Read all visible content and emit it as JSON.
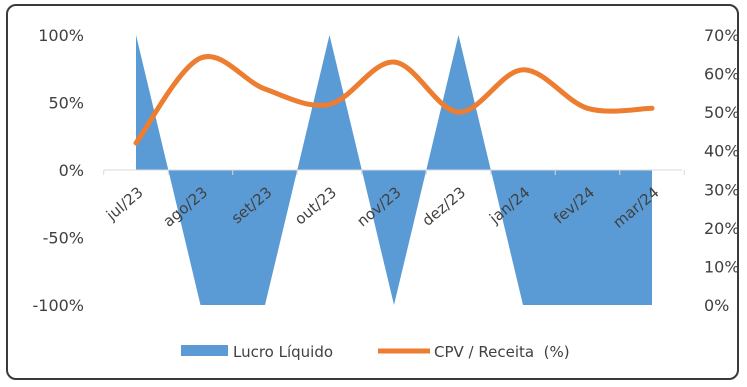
{
  "chart_data": {
    "type": "area+line",
    "categories": [
      "jul/23",
      "ago/23",
      "set/23",
      "out/23",
      "nov/23",
      "dez/23",
      "jan/24",
      "fev/24",
      "mar/24"
    ],
    "series": [
      {
        "name": "Lucro Líquido",
        "type": "area",
        "axis": "left",
        "color": "#5b9bd5",
        "x": [
          0,
          0.5,
          1,
          2,
          2.5,
          3,
          3.5,
          4,
          4.5,
          5,
          5.5,
          6,
          6.5,
          8
        ],
        "values": [
          100,
          0,
          -100,
          -100,
          0,
          100,
          0,
          -100,
          0,
          100,
          0,
          -100,
          -100,
          -100
        ]
      },
      {
        "name": "CPV / Receita  (%)",
        "type": "line",
        "axis": "right",
        "color": "#ed7d31",
        "values": [
          42,
          64,
          56,
          52,
          63,
          50,
          61,
          51,
          51
        ]
      }
    ],
    "y_left": {
      "min": -100,
      "max": 100,
      "ticks": [
        100,
        50,
        0,
        -50,
        -100
      ],
      "tick_labels": [
        "100%",
        "50%",
        "0%",
        "-50%",
        "-100%"
      ]
    },
    "y_right": {
      "min": 0,
      "max": 70,
      "ticks": [
        70,
        60,
        50,
        40,
        30,
        20,
        10,
        0
      ],
      "tick_labels": [
        "70%",
        "60%",
        "50%",
        "40%",
        "30%",
        "20%",
        "10%",
        "0%"
      ]
    },
    "grid": false,
    "legend": {
      "position": "bottom",
      "items": [
        "Lucro Líquido",
        "CPV / Receita  (%)"
      ]
    }
  }
}
